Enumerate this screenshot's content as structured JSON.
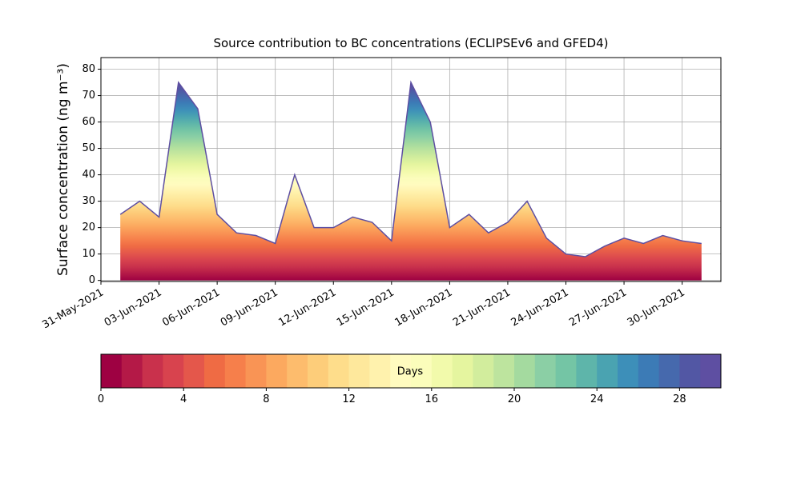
{
  "chart_data": {
    "type": "area",
    "title": "Source contribution to BC concentrations (ECLIPSEv6 and GFED4)",
    "y_label": "Surface concentration (ng m⁻³)",
    "x": [
      "2021-06-01",
      "2021-06-02",
      "2021-06-03",
      "2021-06-04",
      "2021-06-05",
      "2021-06-06",
      "2021-06-07",
      "2021-06-08",
      "2021-06-09",
      "2021-06-10",
      "2021-06-11",
      "2021-06-12",
      "2021-06-13",
      "2021-06-14",
      "2021-06-15",
      "2021-06-16",
      "2021-06-17",
      "2021-06-18",
      "2021-06-19",
      "2021-06-20",
      "2021-06-21",
      "2021-06-22",
      "2021-06-23",
      "2021-06-24",
      "2021-06-25",
      "2021-06-26",
      "2021-06-27",
      "2021-06-28",
      "2021-06-29",
      "2021-06-30",
      "2021-07-01"
    ],
    "values": [
      25,
      30,
      24,
      75,
      65,
      25,
      18,
      17,
      14,
      40,
      20,
      20,
      24,
      22,
      15,
      75,
      60,
      20,
      25,
      18,
      22,
      30,
      16,
      10,
      9,
      13,
      16,
      14,
      17,
      15,
      14
    ],
    "xlim": [
      "2021-05-31",
      "2021-07-02"
    ],
    "xticks": [
      {
        "value": "2021-05-31",
        "label": "31-May-2021"
      },
      {
        "value": "2021-06-03",
        "label": "03-Jun-2021"
      },
      {
        "value": "2021-06-06",
        "label": "06-Jun-2021"
      },
      {
        "value": "2021-06-09",
        "label": "09-Jun-2021"
      },
      {
        "value": "2021-06-12",
        "label": "12-Jun-2021"
      },
      {
        "value": "2021-06-15",
        "label": "15-Jun-2021"
      },
      {
        "value": "2021-06-18",
        "label": "18-Jun-2021"
      },
      {
        "value": "2021-06-21",
        "label": "21-Jun-2021"
      },
      {
        "value": "2021-06-24",
        "label": "24-Jun-2021"
      },
      {
        "value": "2021-06-27",
        "label": "27-Jun-2021"
      },
      {
        "value": "2021-06-30",
        "label": "30-Jun-2021"
      }
    ],
    "ylim": [
      -0.4,
      84.4
    ],
    "yticks": [
      0,
      10,
      20,
      30,
      40,
      50,
      60,
      70,
      80
    ],
    "grid": true,
    "colorbar": {
      "label": "Days",
      "lim": [
        0,
        30
      ],
      "ticks": [
        0,
        4,
        8,
        12,
        16,
        20,
        24,
        28
      ],
      "colors": [
        "#9e0142",
        "#b41947",
        "#c9314c",
        "#d8434e",
        "#e4574b",
        "#ef6b44",
        "#f67f4b",
        "#f99455",
        "#fca95f",
        "#fdbc6d",
        "#fdcd7a",
        "#fedd8b",
        "#fee89c",
        "#fff2ad",
        "#fffbbf",
        "#fbfdbb",
        "#f2faab",
        "#e5f59f",
        "#d2ed9d",
        "#bde49e",
        "#a4da9f",
        "#8bcfa5",
        "#74c5a5",
        "#5eb5aa",
        "#4aa3b1",
        "#3d8fb9",
        "#3c7bb6",
        "#4669ad",
        "#5257a4",
        "#5e4fa2"
      ]
    }
  }
}
